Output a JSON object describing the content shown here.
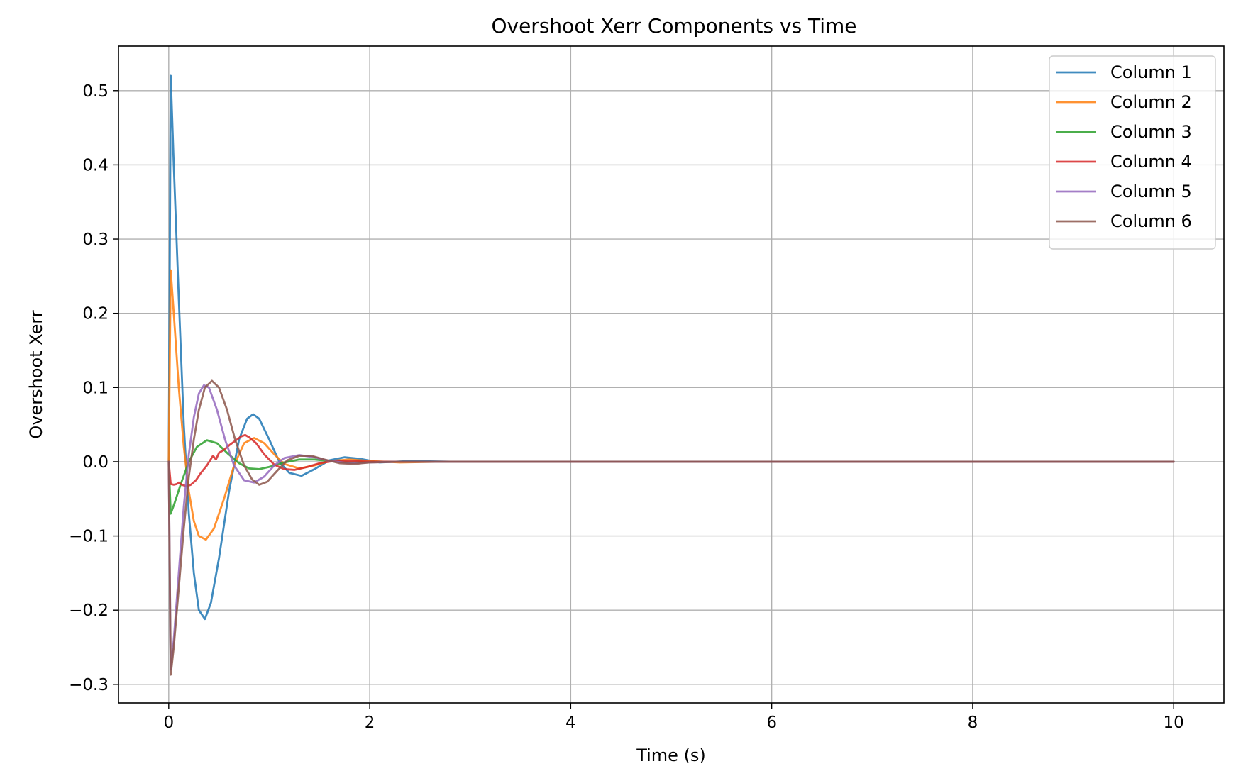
{
  "chart_data": {
    "type": "line",
    "title": "Overshoot Xerr Components vs Time",
    "xlabel": "Time (s)",
    "ylabel": "Overshoot Xerr",
    "xlim": [
      -0.5,
      10.5
    ],
    "ylim": [
      -0.325,
      0.56
    ],
    "xticks": [
      0,
      2,
      4,
      6,
      8,
      10
    ],
    "yticks": [
      -0.3,
      -0.2,
      -0.1,
      0.0,
      0.1,
      0.2,
      0.3,
      0.4,
      0.5
    ],
    "xtick_labels": [
      "0",
      "2",
      "4",
      "6",
      "8",
      "10"
    ],
    "ytick_labels": [
      "−0.3",
      "−0.2",
      "−0.1",
      "0.0",
      "0.1",
      "0.2",
      "0.3",
      "0.4",
      "0.5"
    ],
    "grid": true,
    "legend_position": "top-right",
    "series": [
      {
        "name": "Column 1",
        "color": "#1f77b4",
        "points": [
          [
            0,
            0
          ],
          [
            0.01,
            0.26
          ],
          [
            0.02,
            0.52
          ],
          [
            0.05,
            0.4
          ],
          [
            0.1,
            0.22
          ],
          [
            0.15,
            0.05
          ],
          [
            0.2,
            -0.07
          ],
          [
            0.25,
            -0.15
          ],
          [
            0.3,
            -0.2
          ],
          [
            0.36,
            -0.212
          ],
          [
            0.42,
            -0.19
          ],
          [
            0.5,
            -0.13
          ],
          [
            0.6,
            -0.04
          ],
          [
            0.7,
            0.03
          ],
          [
            0.78,
            0.058
          ],
          [
            0.84,
            0.064
          ],
          [
            0.9,
            0.058
          ],
          [
            1.0,
            0.03
          ],
          [
            1.1,
            0.0
          ],
          [
            1.2,
            -0.015
          ],
          [
            1.32,
            -0.019
          ],
          [
            1.45,
            -0.01
          ],
          [
            1.6,
            0.002
          ],
          [
            1.75,
            0.006
          ],
          [
            1.9,
            0.004
          ],
          [
            2.1,
            -0.001
          ],
          [
            2.4,
            0.001
          ],
          [
            2.8,
            0
          ],
          [
            3.5,
            0
          ],
          [
            10,
            0
          ]
        ]
      },
      {
        "name": "Column 2",
        "color": "#ff7f0e",
        "points": [
          [
            0,
            0
          ],
          [
            0.01,
            0.13
          ],
          [
            0.02,
            0.258
          ],
          [
            0.05,
            0.2
          ],
          [
            0.1,
            0.1
          ],
          [
            0.15,
            0.02
          ],
          [
            0.2,
            -0.04
          ],
          [
            0.25,
            -0.08
          ],
          [
            0.3,
            -0.1
          ],
          [
            0.37,
            -0.105
          ],
          [
            0.45,
            -0.09
          ],
          [
            0.55,
            -0.05
          ],
          [
            0.65,
            -0.005
          ],
          [
            0.75,
            0.025
          ],
          [
            0.85,
            0.032
          ],
          [
            0.95,
            0.025
          ],
          [
            1.05,
            0.01
          ],
          [
            1.15,
            -0.003
          ],
          [
            1.3,
            -0.009
          ],
          [
            1.45,
            -0.005
          ],
          [
            1.6,
            0.001
          ],
          [
            1.8,
            0.003
          ],
          [
            2.0,
            0.001
          ],
          [
            2.3,
            -0.001
          ],
          [
            2.7,
            0
          ],
          [
            10,
            0
          ]
        ]
      },
      {
        "name": "Column 3",
        "color": "#2ca02c",
        "points": [
          [
            0,
            0
          ],
          [
            0.01,
            -0.035
          ],
          [
            0.02,
            -0.07
          ],
          [
            0.06,
            -0.055
          ],
          [
            0.12,
            -0.03
          ],
          [
            0.2,
            0.0
          ],
          [
            0.28,
            0.02
          ],
          [
            0.38,
            0.029
          ],
          [
            0.48,
            0.025
          ],
          [
            0.58,
            0.012
          ],
          [
            0.7,
            -0.002
          ],
          [
            0.8,
            -0.009
          ],
          [
            0.9,
            -0.01
          ],
          [
            1.0,
            -0.007
          ],
          [
            1.15,
            -0.001
          ],
          [
            1.3,
            0.003
          ],
          [
            1.45,
            0.003
          ],
          [
            1.6,
            0.001
          ],
          [
            1.8,
            -0.001
          ],
          [
            2.1,
            0
          ],
          [
            10,
            0
          ]
        ]
      },
      {
        "name": "Column 4",
        "color": "#d62728",
        "points": [
          [
            0,
            0
          ],
          [
            0.01,
            -0.015
          ],
          [
            0.02,
            -0.03
          ],
          [
            0.05,
            -0.031
          ],
          [
            0.08,
            -0.03
          ],
          [
            0.1,
            -0.028
          ],
          [
            0.13,
            -0.031
          ],
          [
            0.18,
            -0.033
          ],
          [
            0.22,
            -0.031
          ],
          [
            0.27,
            -0.025
          ],
          [
            0.32,
            -0.015
          ],
          [
            0.38,
            -0.005
          ],
          [
            0.44,
            0.008
          ],
          [
            0.47,
            0.003
          ],
          [
            0.5,
            0.012
          ],
          [
            0.55,
            0.016
          ],
          [
            0.6,
            0.022
          ],
          [
            0.66,
            0.028
          ],
          [
            0.72,
            0.034
          ],
          [
            0.76,
            0.036
          ],
          [
            0.8,
            0.033
          ],
          [
            0.87,
            0.025
          ],
          [
            0.95,
            0.01
          ],
          [
            1.05,
            -0.004
          ],
          [
            1.15,
            -0.01
          ],
          [
            1.25,
            -0.011
          ],
          [
            1.38,
            -0.007
          ],
          [
            1.5,
            -0.002
          ],
          [
            1.65,
            0.001
          ],
          [
            1.8,
            0.001
          ],
          [
            2.0,
            0
          ],
          [
            10,
            0
          ]
        ]
      },
      {
        "name": "Column 5",
        "color": "#9467bd",
        "points": [
          [
            0,
            0
          ],
          [
            0.01,
            -0.14
          ],
          [
            0.02,
            -0.28
          ],
          [
            0.05,
            -0.24
          ],
          [
            0.1,
            -0.15
          ],
          [
            0.15,
            -0.06
          ],
          [
            0.2,
            0.01
          ],
          [
            0.25,
            0.06
          ],
          [
            0.3,
            0.092
          ],
          [
            0.35,
            0.103
          ],
          [
            0.4,
            0.1
          ],
          [
            0.48,
            0.07
          ],
          [
            0.56,
            0.03
          ],
          [
            0.65,
            -0.005
          ],
          [
            0.75,
            -0.025
          ],
          [
            0.85,
            -0.028
          ],
          [
            0.95,
            -0.02
          ],
          [
            1.05,
            -0.005
          ],
          [
            1.15,
            0.005
          ],
          [
            1.3,
            0.009
          ],
          [
            1.45,
            0.006
          ],
          [
            1.6,
            0.001
          ],
          [
            1.8,
            -0.002
          ],
          [
            2.0,
            -0.001
          ],
          [
            2.3,
            0
          ],
          [
            10,
            0
          ]
        ]
      },
      {
        "name": "Column 6",
        "color": "#8c564b",
        "points": [
          [
            0,
            0
          ],
          [
            0.01,
            -0.143
          ],
          [
            0.02,
            -0.287
          ],
          [
            0.05,
            -0.25
          ],
          [
            0.1,
            -0.17
          ],
          [
            0.15,
            -0.09
          ],
          [
            0.2,
            -0.02
          ],
          [
            0.25,
            0.03
          ],
          [
            0.3,
            0.07
          ],
          [
            0.36,
            0.1
          ],
          [
            0.43,
            0.109
          ],
          [
            0.5,
            0.1
          ],
          [
            0.58,
            0.07
          ],
          [
            0.66,
            0.03
          ],
          [
            0.75,
            -0.005
          ],
          [
            0.83,
            -0.024
          ],
          [
            0.9,
            -0.031
          ],
          [
            0.98,
            -0.027
          ],
          [
            1.08,
            -0.012
          ],
          [
            1.18,
            0.002
          ],
          [
            1.3,
            0.008
          ],
          [
            1.42,
            0.008
          ],
          [
            1.55,
            0.003
          ],
          [
            1.7,
            -0.002
          ],
          [
            1.85,
            -0.003
          ],
          [
            2.0,
            -0.001
          ],
          [
            2.3,
            0
          ],
          [
            10,
            0
          ]
        ]
      }
    ]
  }
}
